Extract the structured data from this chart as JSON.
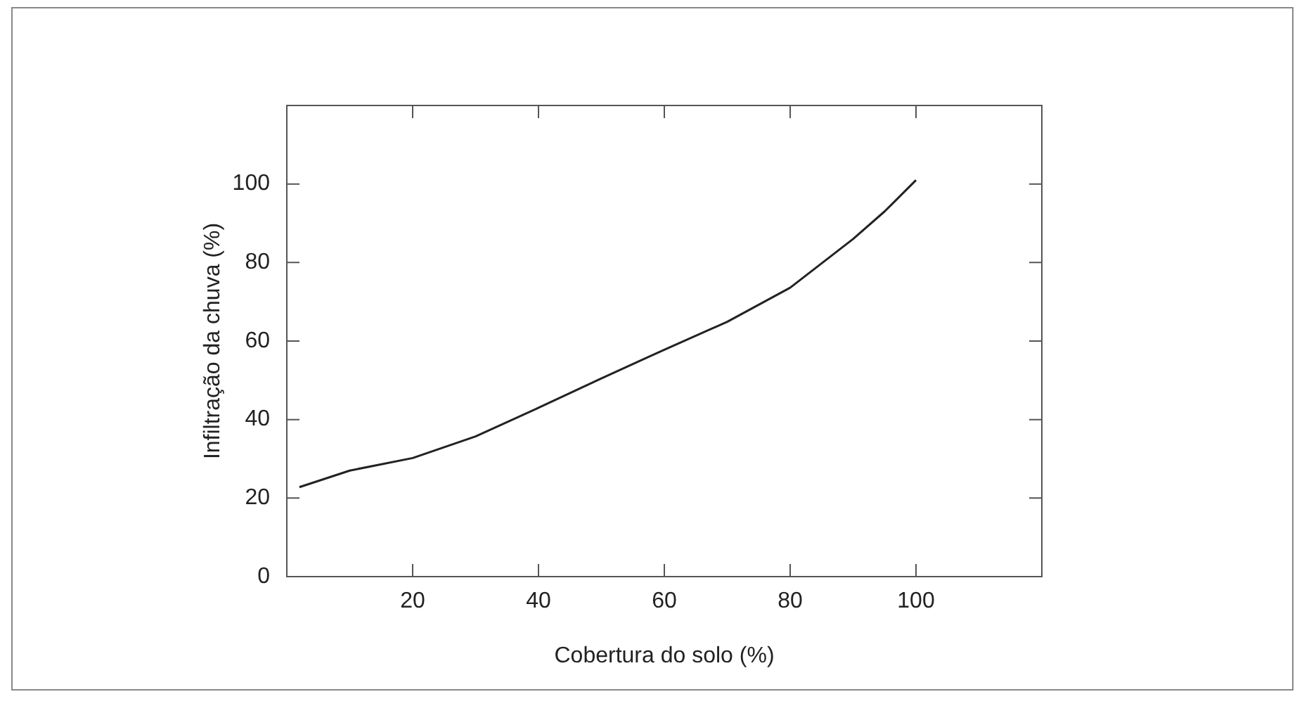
{
  "chart_data": {
    "type": "line",
    "xlabel": "Cobertura do solo (%)",
    "ylabel": "Infiltração da chuva (%)",
    "x": [
      2,
      10,
      20,
      30,
      40,
      50,
      60,
      70,
      80,
      90,
      95,
      100
    ],
    "series": [
      {
        "color": "#222222",
        "values": [
          22.8,
          27,
          30.2,
          35.7,
          43,
          50.5,
          57.8,
          64.9,
          73.6,
          86,
          93,
          101
        ]
      }
    ],
    "xlim": [
      0,
      120
    ],
    "xticks": [
      20,
      40,
      60,
      80,
      100
    ],
    "ylim": [
      0,
      120
    ],
    "yticks": [
      0,
      20,
      40,
      60,
      80,
      100
    ],
    "grid": false,
    "legend": false,
    "marker": "none",
    "line_style": "solid"
  }
}
